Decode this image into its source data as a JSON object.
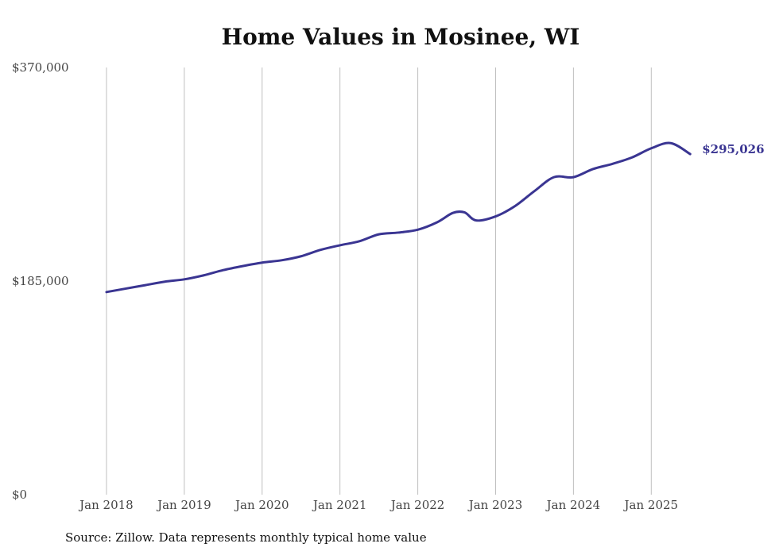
{
  "chart_data": {
    "type": "line",
    "title": "Home Values in Mosinee, WI",
    "source": "Source: Zillow. Data represents monthly typical home value",
    "xlabel": "",
    "ylabel": "",
    "x_ticks": [
      "Jan 2018",
      "Jan 2019",
      "Jan 2020",
      "Jan 2021",
      "Jan 2022",
      "Jan 2023",
      "Jan 2024",
      "Jan 2025"
    ],
    "x_tick_values": [
      2018,
      2019,
      2020,
      2021,
      2022,
      2023,
      2024,
      2025
    ],
    "xlim": [
      2017.5,
      2026.1
    ],
    "y_ticks": [
      "$0",
      "$185,000",
      "$370,000"
    ],
    "y_tick_values": [
      0,
      185000,
      370000
    ],
    "ylim": [
      0,
      370000
    ],
    "grid": {
      "vertical": true,
      "horizontal": false
    },
    "line_color": "#3a3592",
    "grid_color": "#bfbfbf",
    "end_label": "$295,026",
    "series": [
      {
        "name": "",
        "points": [
          [
            2018.0,
            175500
          ],
          [
            2018.25,
            178500
          ],
          [
            2018.5,
            181500
          ],
          [
            2018.75,
            184500
          ],
          [
            2019.0,
            186500
          ],
          [
            2019.25,
            190000
          ],
          [
            2019.5,
            194500
          ],
          [
            2019.75,
            198000
          ],
          [
            2020.0,
            201000
          ],
          [
            2020.25,
            203000
          ],
          [
            2020.5,
            206500
          ],
          [
            2020.75,
            212000
          ],
          [
            2021.0,
            216000
          ],
          [
            2021.25,
            219500
          ],
          [
            2021.5,
            225500
          ],
          [
            2021.75,
            227000
          ],
          [
            2022.0,
            229500
          ],
          [
            2022.25,
            236000
          ],
          [
            2022.45,
            244000
          ],
          [
            2022.6,
            244500
          ],
          [
            2022.75,
            237500
          ],
          [
            2023.0,
            241000
          ],
          [
            2023.25,
            250000
          ],
          [
            2023.5,
            263000
          ],
          [
            2023.75,
            275000
          ],
          [
            2024.0,
            275000
          ],
          [
            2024.25,
            282000
          ],
          [
            2024.5,
            286500
          ],
          [
            2024.75,
            292000
          ],
          [
            2025.0,
            300000
          ],
          [
            2025.25,
            304500
          ],
          [
            2025.5,
            295026
          ]
        ]
      }
    ]
  }
}
